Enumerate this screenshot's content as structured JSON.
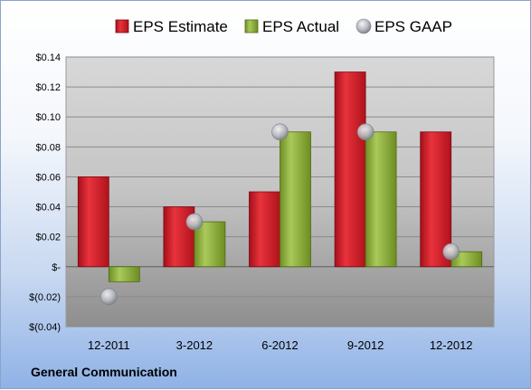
{
  "company_name": "General Communication",
  "chart_data": {
    "type": "bar",
    "categories": [
      "12-2011",
      "3-2012",
      "6-2012",
      "9-2012",
      "12-2012"
    ],
    "series": [
      {
        "name": "EPS Estimate",
        "kind": "bar",
        "color": "#cc1f2a",
        "values": [
          0.06,
          0.04,
          0.05,
          0.13,
          0.09
        ]
      },
      {
        "name": "EPS Actual",
        "kind": "bar",
        "color": "#8db03a",
        "values": [
          -0.01,
          0.03,
          0.09,
          0.09,
          0.01
        ]
      },
      {
        "name": "EPS GAAP",
        "kind": "point",
        "color": "#b8bcc4",
        "values": [
          -0.02,
          0.03,
          0.09,
          0.09,
          0.01
        ]
      }
    ],
    "y_ticks": [
      {
        "value": 0.14,
        "label": "$0.14"
      },
      {
        "value": 0.12,
        "label": "$0.12"
      },
      {
        "value": 0.1,
        "label": "$0.10"
      },
      {
        "value": 0.08,
        "label": "$0.08"
      },
      {
        "value": 0.06,
        "label": "$0.06"
      },
      {
        "value": 0.04,
        "label": "$0.04"
      },
      {
        "value": 0.02,
        "label": "$0.02"
      },
      {
        "value": 0.0,
        "label": "$-"
      },
      {
        "value": -0.02,
        "label": "$(0.02)"
      },
      {
        "value": -0.04,
        "label": "$(0.04)"
      }
    ],
    "ylim": [
      -0.04,
      0.14
    ],
    "grid": true,
    "legend_position": "top",
    "title": "",
    "xlabel": "",
    "ylabel": ""
  }
}
